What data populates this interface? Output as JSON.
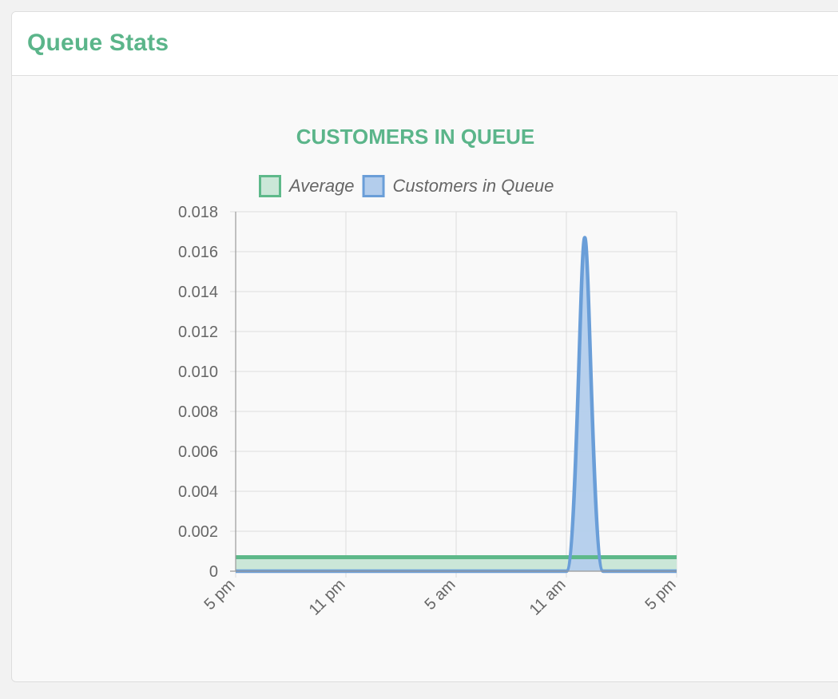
{
  "card": {
    "title": "Queue Stats"
  },
  "colors": {
    "accent": "#5bb58a",
    "average_line": "#5eb98a",
    "average_fill": "#cbe7d8",
    "queue_line": "#6a9ed8",
    "queue_fill": "#b3cdec",
    "grid": "#dddddd",
    "axis": "#999999",
    "tick_text": "#666666"
  },
  "chart_data": {
    "type": "area",
    "title": "CUSTOMERS IN QUEUE",
    "legend_position": "top",
    "grid": true,
    "x_tick_labels": [
      "5 pm",
      "11 pm",
      "5 am",
      "11 am",
      "5 pm"
    ],
    "x_unit_hours_from_start": [
      0,
      6,
      12,
      18,
      24
    ],
    "xlim_hours": [
      0,
      24
    ],
    "ylim": [
      0,
      0.018
    ],
    "y_ticks": [
      0,
      0.002,
      0.004,
      0.006,
      0.008,
      0.01,
      0.012,
      0.014,
      0.016,
      0.018
    ],
    "y_tick_labels": [
      "0",
      "0.002",
      "0.004",
      "0.006",
      "0.008",
      "0.010",
      "0.012",
      "0.014",
      "0.016",
      "0.018"
    ],
    "series": [
      {
        "name": "Average",
        "x": [
          0,
          24
        ],
        "values": [
          0.0007,
          0.0007
        ]
      },
      {
        "name": "Customers in Queue",
        "x": [
          0,
          18,
          19,
          20,
          24
        ],
        "values": [
          0,
          0,
          0.0167,
          0,
          0
        ]
      }
    ]
  }
}
